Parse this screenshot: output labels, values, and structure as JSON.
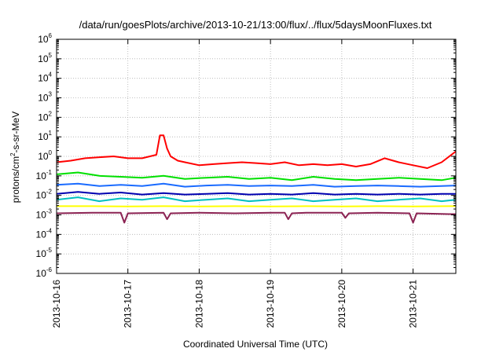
{
  "chart_data": {
    "type": "line",
    "title": "/data/run/goesPlots/archive/2013-10-21/13:00/flux/../flux/5daysMoonFluxes.txt",
    "xlabel": "Coordinated Universal Time (UTC)",
    "ylabel_parts": [
      "protons/cm",
      "2",
      "-s-sr-MeV"
    ],
    "x_ticks": [
      "2013-10-16",
      "2013-10-17",
      "2013-10-18",
      "2013-10-19",
      "2013-10-20",
      "2013-10-21"
    ],
    "xlim_days": [
      0,
      5.6
    ],
    "y_scale": "log",
    "ylim": [
      1e-06,
      1000000.0
    ],
    "y_tick_exponents": [
      -6,
      -5,
      -4,
      -3,
      -2,
      -1,
      0,
      1,
      2,
      3,
      4,
      5,
      6
    ],
    "y_tick_base": "10",
    "grid": true,
    "series": [
      {
        "color": "#ff0000",
        "x": [
          0,
          0.2,
          0.4,
          0.6,
          0.8,
          1.0,
          1.2,
          1.4,
          1.45,
          1.5,
          1.55,
          1.6,
          1.7,
          1.8,
          2.0,
          2.2,
          2.4,
          2.6,
          2.8,
          3.0,
          3.2,
          3.4,
          3.6,
          3.8,
          4.0,
          4.2,
          4.4,
          4.6,
          4.8,
          5.0,
          5.2,
          5.4,
          5.6
        ],
        "y": [
          0.5,
          0.6,
          0.8,
          0.9,
          1.0,
          0.8,
          0.8,
          1.2,
          12,
          12,
          2.5,
          1.0,
          0.6,
          0.5,
          0.35,
          0.4,
          0.45,
          0.5,
          0.45,
          0.4,
          0.5,
          0.35,
          0.4,
          0.35,
          0.4,
          0.3,
          0.4,
          0.8,
          0.5,
          0.35,
          0.25,
          0.5,
          1.8
        ]
      },
      {
        "color": "#00e000",
        "x": [
          0,
          0.3,
          0.6,
          0.9,
          1.2,
          1.5,
          1.8,
          2.1,
          2.4,
          2.7,
          3.0,
          3.3,
          3.6,
          3.9,
          4.2,
          4.5,
          4.8,
          5.1,
          5.4,
          5.6
        ],
        "y": [
          0.12,
          0.15,
          0.1,
          0.09,
          0.08,
          0.1,
          0.07,
          0.08,
          0.09,
          0.07,
          0.08,
          0.06,
          0.09,
          0.07,
          0.06,
          0.07,
          0.08,
          0.07,
          0.06,
          0.08
        ]
      },
      {
        "color": "#00c0c0",
        "x": [
          0,
          0.3,
          0.6,
          0.9,
          1.2,
          1.5,
          1.8,
          2.1,
          2.4,
          2.7,
          3.0,
          3.3,
          3.6,
          3.9,
          4.2,
          4.5,
          4.8,
          5.1,
          5.4,
          5.6
        ],
        "y": [
          0.006,
          0.008,
          0.005,
          0.007,
          0.006,
          0.008,
          0.005,
          0.006,
          0.007,
          0.005,
          0.006,
          0.007,
          0.005,
          0.006,
          0.007,
          0.005,
          0.006,
          0.007,
          0.005,
          0.006
        ]
      },
      {
        "color": "#1a6bff",
        "x": [
          0,
          0.3,
          0.6,
          0.9,
          1.2,
          1.5,
          1.8,
          2.1,
          2.4,
          2.7,
          3.0,
          3.3,
          3.6,
          3.9,
          4.2,
          4.5,
          4.8,
          5.1,
          5.4,
          5.6
        ],
        "y": [
          0.035,
          0.04,
          0.03,
          0.035,
          0.03,
          0.04,
          0.028,
          0.032,
          0.035,
          0.03,
          0.032,
          0.03,
          0.035,
          0.028,
          0.03,
          0.032,
          0.03,
          0.028,
          0.03,
          0.032
        ]
      },
      {
        "color": "#0000b0",
        "x": [
          0,
          0.3,
          0.6,
          0.9,
          1.2,
          1.5,
          1.8,
          2.1,
          2.4,
          2.7,
          3.0,
          3.3,
          3.6,
          3.9,
          4.2,
          4.5,
          4.8,
          5.1,
          5.4,
          5.6
        ],
        "y": [
          0.012,
          0.015,
          0.012,
          0.014,
          0.011,
          0.013,
          0.011,
          0.012,
          0.013,
          0.011,
          0.012,
          0.011,
          0.013,
          0.011,
          0.012,
          0.011,
          0.012,
          0.011,
          0.012,
          0.012
        ]
      },
      {
        "color": "#ffff00",
        "x": [
          0,
          0.5,
          1.0,
          1.5,
          2.0,
          2.5,
          3.0,
          3.5,
          4.0,
          4.5,
          5.0,
          5.5,
          5.6
        ],
        "y": [
          0.0028,
          0.0028,
          0.0027,
          0.0028,
          0.0027,
          0.0028,
          0.0027,
          0.0028,
          0.0027,
          0.0028,
          0.0027,
          0.0028,
          0.0028
        ]
      },
      {
        "color": "#8b2252",
        "x": [
          0,
          0.5,
          0.9,
          0.95,
          1.0,
          1.5,
          1.55,
          1.6,
          2.0,
          2.5,
          3.0,
          3.2,
          3.25,
          3.3,
          3.5,
          4.0,
          4.05,
          4.1,
          4.5,
          4.95,
          5.0,
          5.05,
          5.5,
          5.6
        ],
        "y": [
          0.0012,
          0.0013,
          0.0013,
          0.0004,
          0.0012,
          0.0013,
          0.0006,
          0.0012,
          0.0013,
          0.0012,
          0.0013,
          0.0013,
          0.0006,
          0.0012,
          0.0013,
          0.0013,
          0.0007,
          0.0012,
          0.0013,
          0.0012,
          0.0004,
          0.0012,
          0.0011,
          0.0011
        ]
      }
    ]
  }
}
